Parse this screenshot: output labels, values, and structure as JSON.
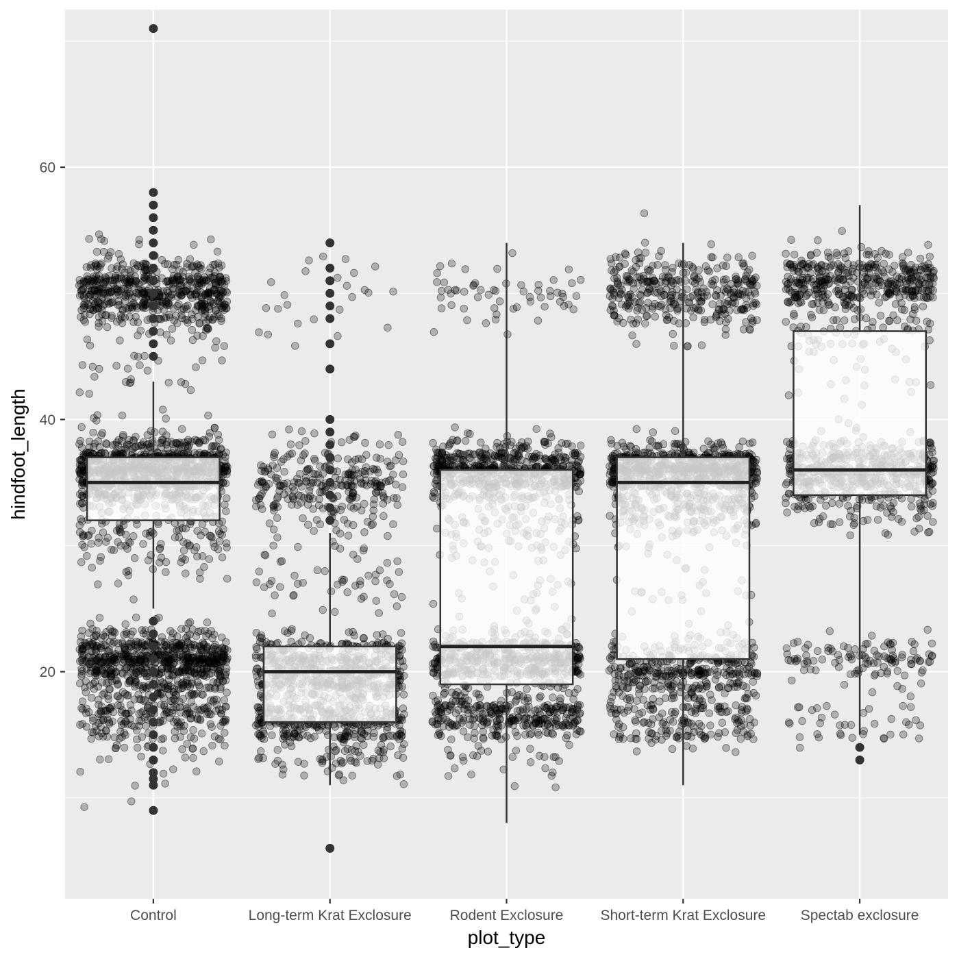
{
  "chart_data": {
    "type": "boxplot",
    "xlabel": "plot_type",
    "ylabel": "hindfoot_length",
    "categories": [
      "Control",
      "Long-term Krat Exclosure",
      "Rodent Exclosure",
      "Short-term Krat Exclosure",
      "Spectab exclosure"
    ],
    "ylim": [
      2,
      72.5
    ],
    "y_ticks": [
      20,
      40,
      60
    ],
    "y_tick_labels": [
      "20",
      "40",
      "60"
    ],
    "grid": true,
    "panel_background": "#ebebeb",
    "grid_color": "#ffffff",
    "point_color": "#000000",
    "point_alpha": 0.25,
    "boxes": [
      {
        "category": "Control",
        "q1": 32,
        "median": 35,
        "q3": 37,
        "whisker_low": 25,
        "whisker_high": 43,
        "outliers": [
          9,
          11,
          11.5,
          12,
          13,
          14,
          15,
          16,
          17,
          18,
          19,
          20,
          21,
          22,
          23,
          24,
          45,
          46,
          47,
          48,
          49,
          50,
          51,
          52,
          53,
          54,
          55,
          56,
          57,
          58,
          71
        ]
      },
      {
        "category": "Long-term Krat Exclosure",
        "q1": 16,
        "median": 20,
        "q3": 22,
        "whisker_low": 11,
        "whisker_high": 31,
        "outliers": [
          6,
          32,
          33,
          34,
          35,
          36,
          37,
          38,
          39,
          40,
          44,
          46,
          48,
          49,
          50,
          51,
          52,
          54
        ]
      },
      {
        "category": "Rodent Exclosure",
        "q1": 19,
        "median": 22,
        "q3": 36,
        "whisker_low": 8,
        "whisker_high": 54,
        "outliers": []
      },
      {
        "category": "Short-term Krat Exclosure",
        "q1": 21,
        "median": 35,
        "q3": 37,
        "whisker_low": 11,
        "whisker_high": 54,
        "outliers": []
      },
      {
        "category": "Spectab exclosure",
        "q1": 34,
        "median": 36,
        "q3": 47,
        "whisker_low": 15,
        "whisker_high": 57,
        "outliers": [
          13,
          14
        ]
      }
    ],
    "jitter_clusters": [
      {
        "category": "Control",
        "bands": [
          {
            "center": 36,
            "spread": 2.3,
            "count": 900
          },
          {
            "center": 21,
            "spread": 1.8,
            "count": 650
          },
          {
            "center": 50,
            "spread": 2.5,
            "count": 600
          },
          {
            "center": 31,
            "spread": 3,
            "count": 150
          },
          {
            "center": 17,
            "spread": 2,
            "count": 250
          },
          {
            "center": 14,
            "spread": 2.5,
            "count": 40
          },
          {
            "center": 44,
            "spread": 2,
            "count": 25
          }
        ]
      },
      {
        "category": "Long-term Krat Exclosure",
        "bands": [
          {
            "center": 20,
            "spread": 2.2,
            "count": 550
          },
          {
            "center": 16,
            "spread": 1.5,
            "count": 300
          },
          {
            "center": 35,
            "spread": 2.8,
            "count": 280
          },
          {
            "center": 28,
            "spread": 3.5,
            "count": 60
          },
          {
            "center": 13,
            "spread": 1.5,
            "count": 50
          },
          {
            "center": 50,
            "spread": 3,
            "count": 25
          }
        ]
      },
      {
        "category": "Rodent Exclosure",
        "bands": [
          {
            "center": 36,
            "spread": 1.8,
            "count": 550
          },
          {
            "center": 21,
            "spread": 1.6,
            "count": 450
          },
          {
            "center": 16.5,
            "spread": 1.4,
            "count": 300
          },
          {
            "center": 32,
            "spread": 2.5,
            "count": 120
          },
          {
            "center": 50,
            "spread": 2.5,
            "count": 60
          },
          {
            "center": 26,
            "spread": 4,
            "count": 30
          },
          {
            "center": 13,
            "spread": 1.5,
            "count": 30
          }
        ]
      },
      {
        "category": "Short-term Krat Exclosure",
        "bands": [
          {
            "center": 36,
            "spread": 1.6,
            "count": 650
          },
          {
            "center": 33,
            "spread": 2.2,
            "count": 200
          },
          {
            "center": 50,
            "spread": 2.6,
            "count": 350
          },
          {
            "center": 20,
            "spread": 2.2,
            "count": 350
          },
          {
            "center": 16,
            "spread": 1.6,
            "count": 150
          },
          {
            "center": 27,
            "spread": 3.5,
            "count": 30
          }
        ]
      },
      {
        "category": "Spectab exclosure",
        "bands": [
          {
            "center": 36,
            "spread": 1.8,
            "count": 450
          },
          {
            "center": 51,
            "spread": 2,
            "count": 380
          },
          {
            "center": 47,
            "spread": 2.5,
            "count": 80
          },
          {
            "center": 33,
            "spread": 1.8,
            "count": 100
          },
          {
            "center": 21,
            "spread": 1.6,
            "count": 110
          },
          {
            "center": 16,
            "spread": 1.6,
            "count": 40
          },
          {
            "center": 42,
            "spread": 3,
            "count": 20
          }
        ]
      }
    ]
  }
}
